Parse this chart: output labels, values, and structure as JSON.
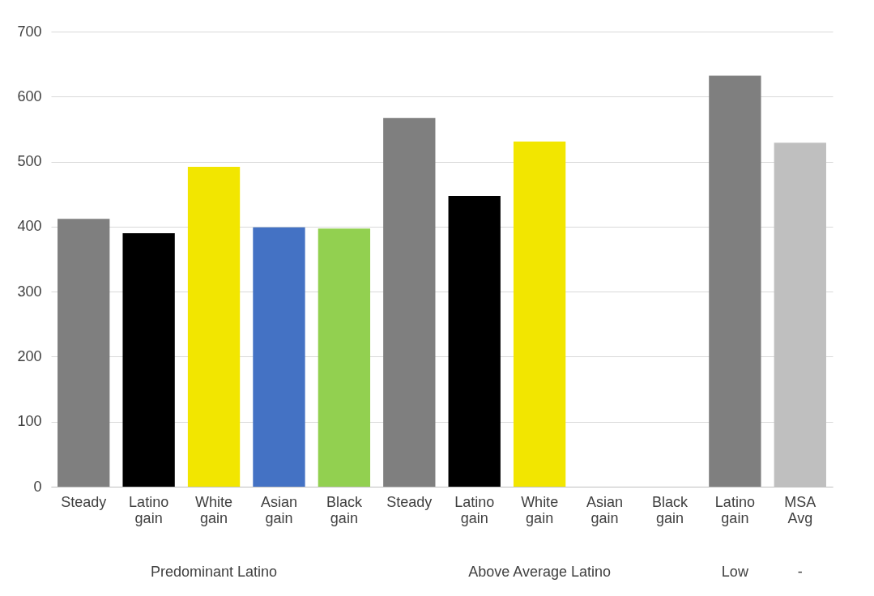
{
  "chart_data": {
    "type": "bar",
    "categories": [
      "Steady",
      "Latino gain",
      "White gain",
      "Asian gain",
      "Black gain",
      "Steady",
      "Latino gain",
      "White gain",
      "Asian gain",
      "Black gain",
      "Latino gain",
      "MSA Avg"
    ],
    "values": [
      412,
      390,
      492,
      399,
      397,
      567,
      447,
      531,
      null,
      null,
      632,
      529
    ],
    "colors": [
      "#7f7f7f",
      "#000000",
      "#f2e600",
      "#4472c4",
      "#92d050",
      "#7f7f7f",
      "#000000",
      "#f2e600",
      null,
      null,
      "#7f7f7f",
      "#bfbfbf"
    ],
    "annotations": [
      "Predominant Latino",
      "Above Average Latino",
      "Low",
      "-"
    ],
    "ylim": [
      0,
      700
    ],
    "yticks": [
      0,
      100,
      200,
      300,
      400,
      500,
      600,
      700
    ],
    "grid": "y"
  }
}
